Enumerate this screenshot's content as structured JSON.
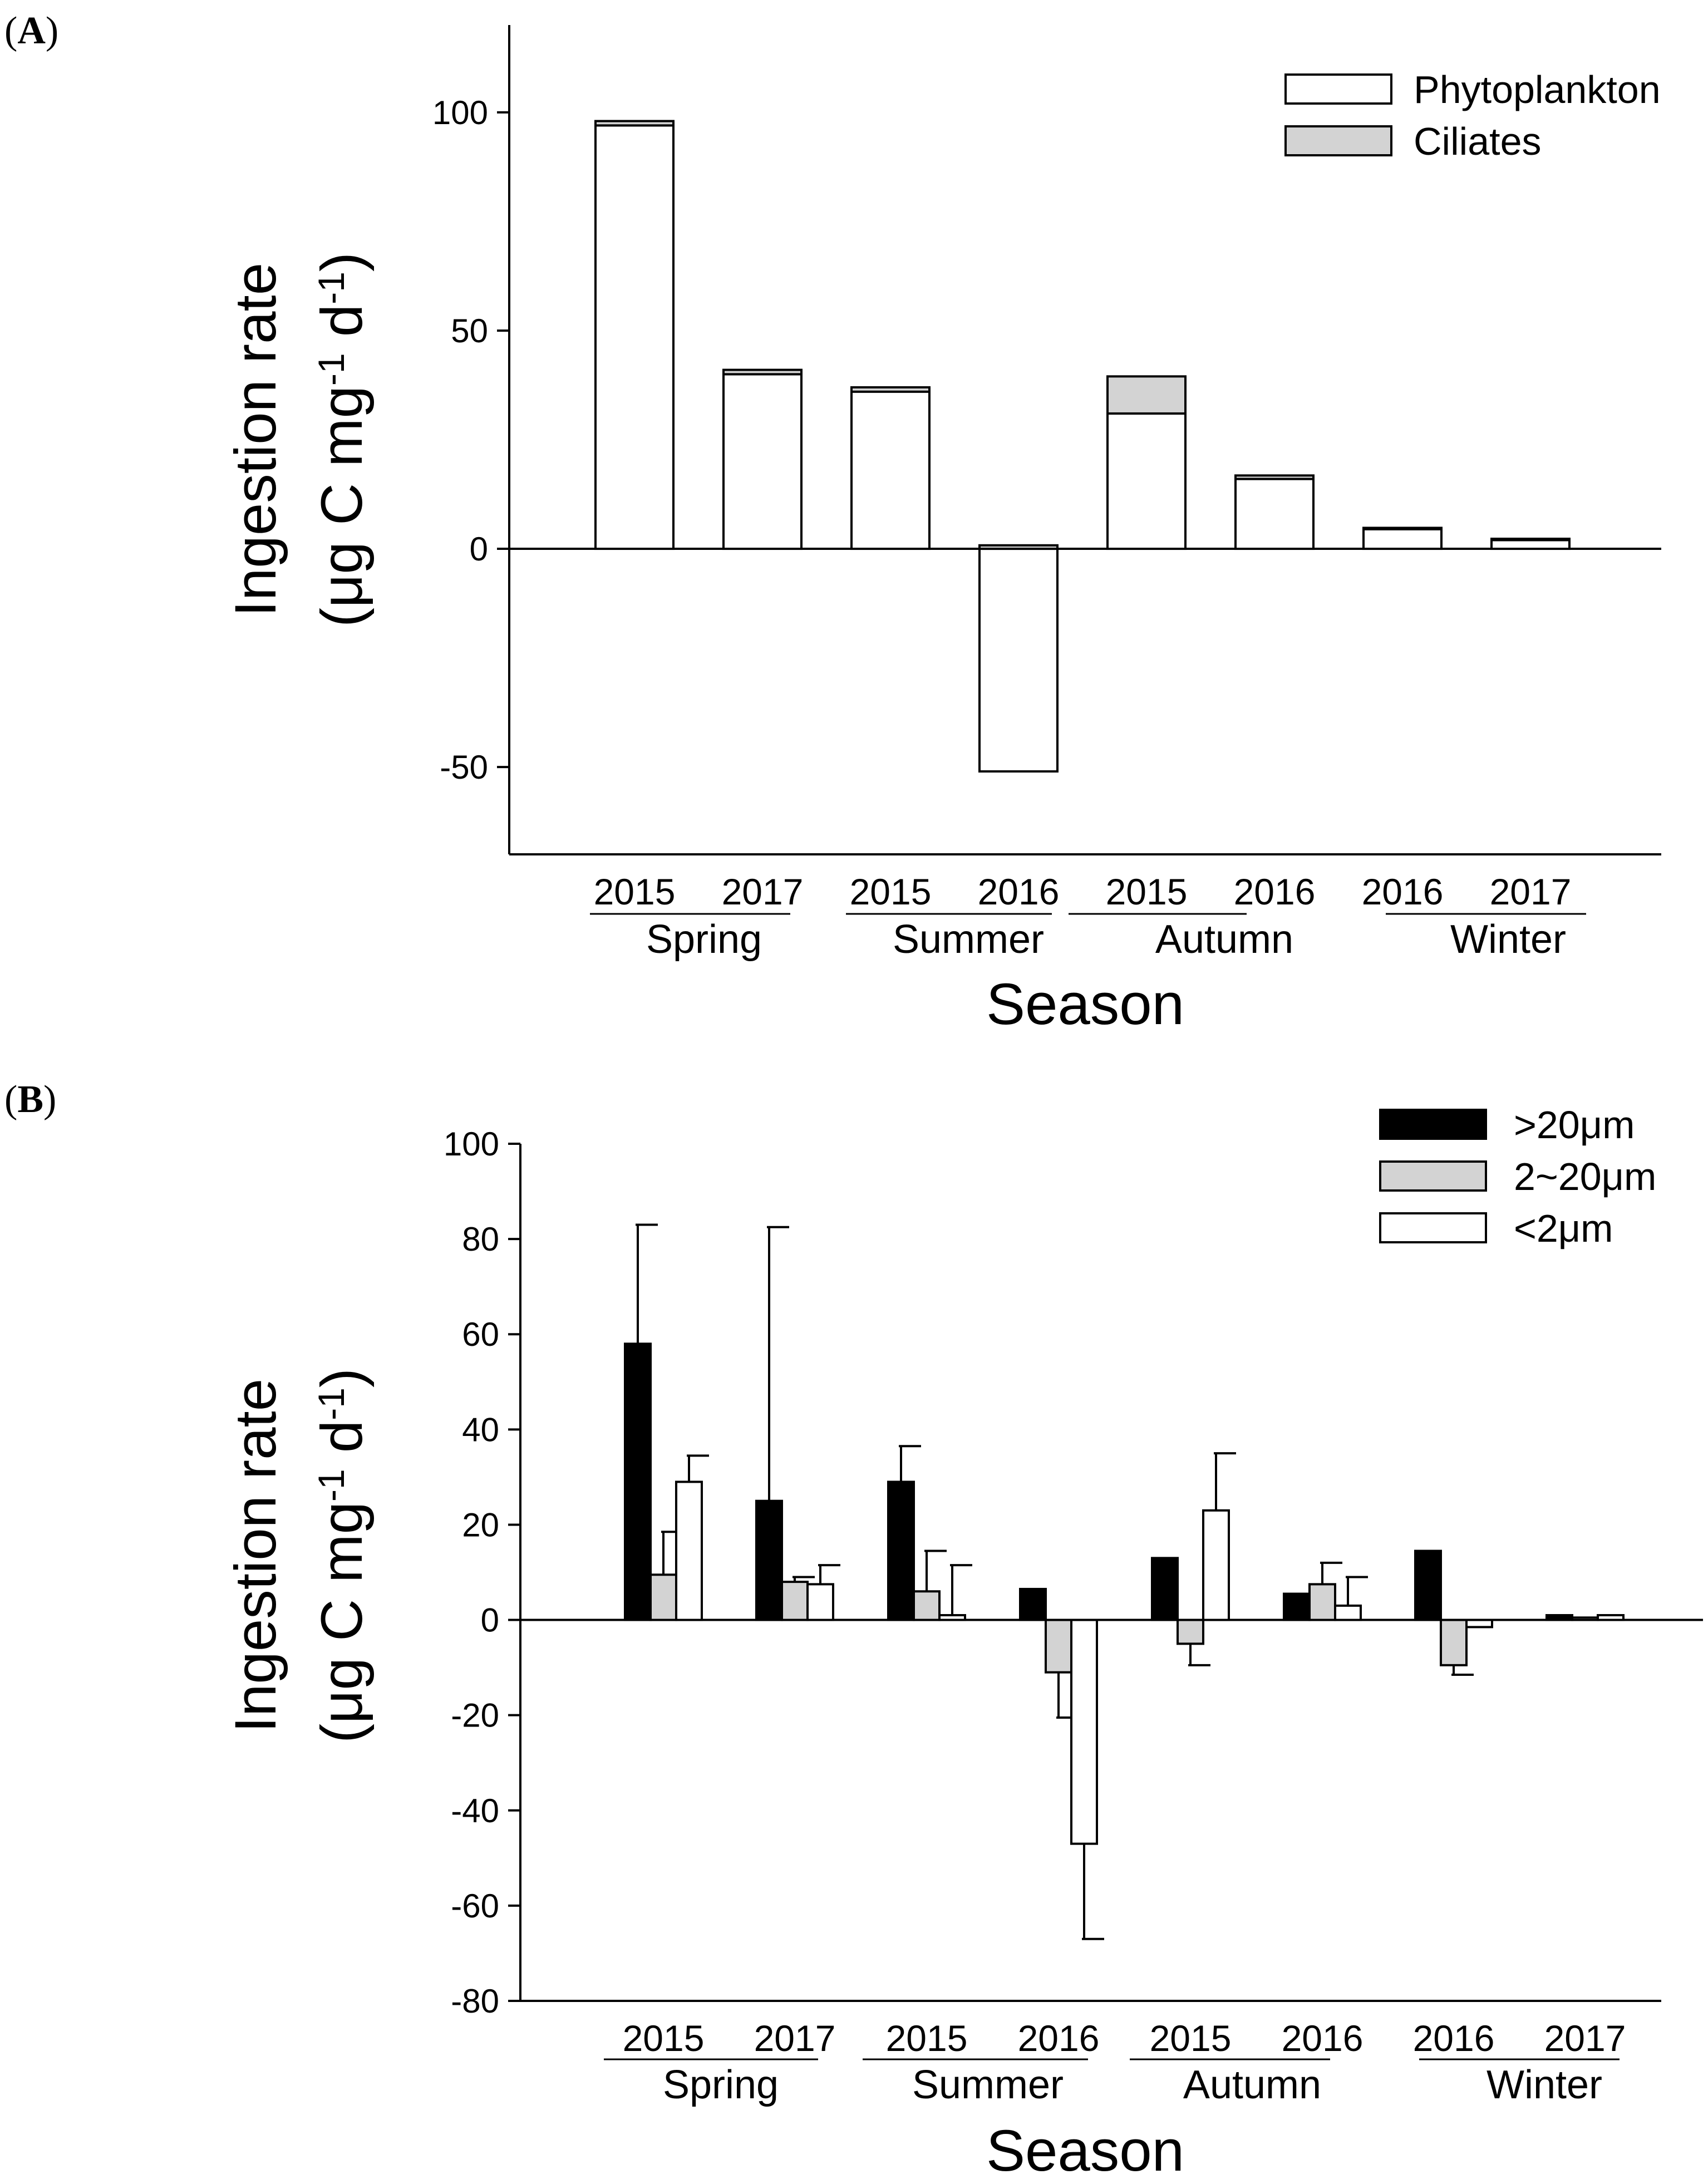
{
  "chart_data": [
    {
      "panel": "A",
      "type": "bar",
      "stacked": true,
      "ylabel_line1": "Ingestion rate",
      "ylabel_line2": "(μg C mg",
      "ylabel_sup1": "-1",
      "ylabel_mid": " d",
      "ylabel_sup2": "-1",
      "ylabel_end": ")",
      "xlabel": "Season",
      "ylim": [
        -70,
        120
      ],
      "yticks": [
        -50,
        0,
        50,
        100
      ],
      "categories": [
        "2015",
        "2017",
        "2015",
        "2016",
        "2015",
        "2016",
        "2016",
        "2017"
      ],
      "groups": [
        {
          "name": "Spring",
          "from": 0,
          "to": 1
        },
        {
          "name": "Summer",
          "from": 2,
          "to": 3
        },
        {
          "name": "Autumn",
          "from": 4,
          "to": 5
        },
        {
          "name": "Winter",
          "from": 6,
          "to": 7
        }
      ],
      "series": [
        {
          "name": "Phytoplankton",
          "color": "#ffffff",
          "values": [
            97,
            40,
            36,
            -51,
            31,
            16,
            4.5,
            2
          ]
        },
        {
          "name": "Ciliates",
          "color": "#d3d3d3",
          "values": [
            1,
            1,
            1,
            0.8,
            8.5,
            0.8,
            0.3,
            0.3
          ]
        }
      ]
    },
    {
      "panel": "B",
      "type": "bar",
      "stacked": false,
      "ylabel_line1": "Ingestion rate",
      "ylabel_line2": "(μg C mg",
      "ylabel_sup1": "-1",
      "ylabel_mid": " d",
      "ylabel_sup2": "-1",
      "ylabel_end": ")",
      "xlabel": "Season",
      "ylim": [
        -80,
        100
      ],
      "yticks": [
        -80,
        -60,
        -40,
        -20,
        0,
        20,
        40,
        60,
        80,
        100
      ],
      "categories": [
        "2015",
        "2017",
        "2015",
        "2016",
        "2015",
        "2016",
        "2016",
        "2017"
      ],
      "groups": [
        {
          "name": "Spring",
          "from": 0,
          "to": 1
        },
        {
          "name": "Summer",
          "from": 2,
          "to": 3
        },
        {
          "name": "Autumn",
          "from": 4,
          "to": 5
        },
        {
          "name": "Winter",
          "from": 6,
          "to": 7
        }
      ],
      "series": [
        {
          "name": ">20μm",
          "color": "#000000",
          "values": [
            58,
            25,
            29,
            6.5,
            13,
            5.5,
            14.5,
            1
          ],
          "errors": [
            25,
            57.5,
            7.5,
            0,
            0,
            0,
            0,
            0
          ]
        },
        {
          "name": "2~20μm",
          "color": "#d3d3d3",
          "values": [
            9.5,
            8,
            6,
            -11,
            -5,
            7.5,
            -9.5,
            0.5
          ],
          "errors": [
            9,
            1,
            8.5,
            9.5,
            4.5,
            4.5,
            2,
            0
          ]
        },
        {
          "name": "<2μm",
          "color": "#ffffff",
          "values": [
            29,
            7.5,
            1,
            -47,
            23,
            3,
            -1.5,
            1
          ],
          "errors": [
            5.5,
            4,
            10.5,
            20,
            12,
            6,
            0,
            0
          ]
        }
      ]
    }
  ],
  "panel_labels": [
    {
      "open": "(",
      "letter": "A",
      "close": ")"
    },
    {
      "open": "(",
      "letter": "B",
      "close": ")"
    }
  ]
}
